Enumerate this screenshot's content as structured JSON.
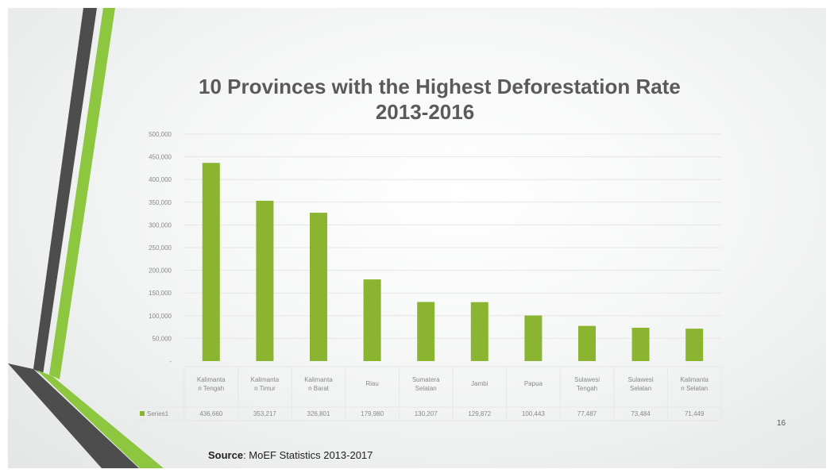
{
  "slide_number": "16",
  "source": {
    "label": "Source",
    "text": ": MoEF Statistics 2013-2017"
  },
  "colors": {
    "bar": "#8bb431",
    "decor_green": "#8dc63f",
    "decor_dark": "#4d4d4d",
    "gridline": "#e6e6e6",
    "text": "#888888"
  },
  "chart_data": {
    "type": "bar",
    "title": "10 Provinces with the Highest Deforestation Rate",
    "subtitle": "2013-2016",
    "categories": [
      [
        "Kalimanta",
        "n Tengah"
      ],
      [
        "Kalimanta",
        "n Timur"
      ],
      [
        "Kalimanta",
        "n Barat"
      ],
      [
        "Riau"
      ],
      [
        "Sumatera",
        "Selatan"
      ],
      [
        "Jambi"
      ],
      [
        "Papua"
      ],
      [
        "Sulawesi",
        "Tengah"
      ],
      [
        "Sulawesi",
        "Selatan"
      ],
      [
        "Kalimanta",
        "n Selatan"
      ]
    ],
    "series": [
      {
        "name": "Series1",
        "values": [
          436660,
          353217,
          326801,
          179980,
          130207,
          129872,
          100443,
          77487,
          73484,
          71449
        ],
        "labels": [
          "436,660",
          "353,217",
          "326,801",
          "179,980",
          "130,207",
          "129,872",
          "100,443",
          "77,487",
          "73,484",
          "71,449"
        ]
      }
    ],
    "ylim": [
      0,
      500000
    ],
    "yticks": [
      0,
      50000,
      100000,
      150000,
      200000,
      250000,
      300000,
      350000,
      400000,
      450000,
      500000
    ],
    "ytick_labels": [
      "-",
      "50,000",
      "100,000",
      "150,000",
      "200,000",
      "250,000",
      "300,000",
      "350,000",
      "400,000",
      "450,000",
      "500,000"
    ],
    "grid": true,
    "legend": "data-table"
  }
}
